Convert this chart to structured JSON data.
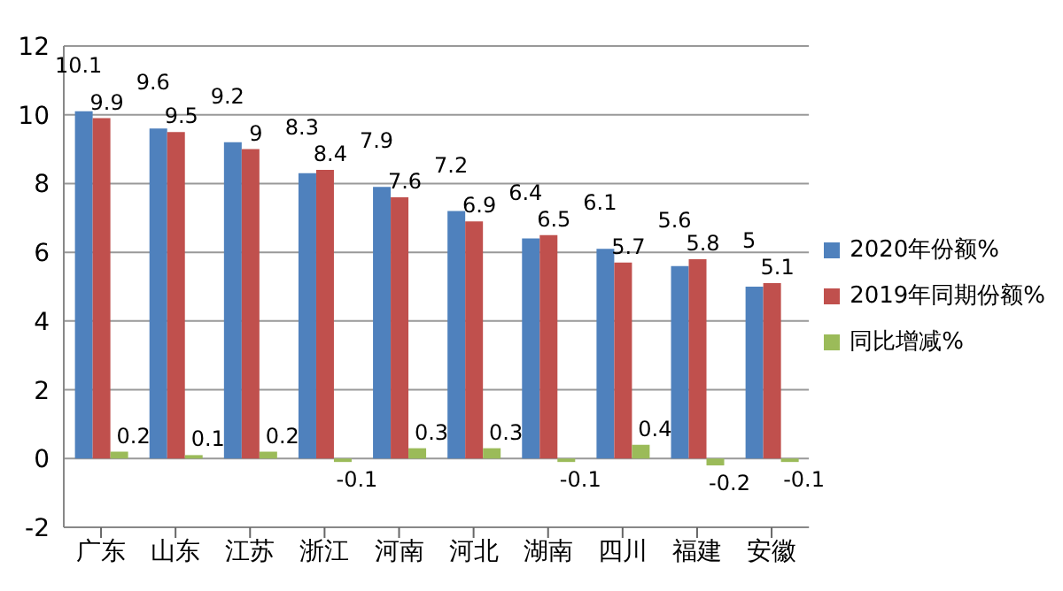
{
  "chart_data": {
    "type": "bar",
    "categories": [
      "广东",
      "山东",
      "江苏",
      "浙江",
      "河南",
      "河北",
      "湖南",
      "四川",
      "福建",
      "安徽"
    ],
    "series": [
      {
        "name": "2020年份额%",
        "color": "#4f81bd",
        "values": [
          10.1,
          9.6,
          9.2,
          8.3,
          7.9,
          7.2,
          6.4,
          6.1,
          5.6,
          5
        ]
      },
      {
        "name": "2019年同期份额%",
        "color": "#c0504d",
        "values": [
          9.9,
          9.5,
          9,
          8.4,
          7.6,
          6.9,
          6.5,
          5.7,
          5.8,
          5.1
        ]
      },
      {
        "name": "同比增减%",
        "color": "#9bbb59",
        "values": [
          0.2,
          0.1,
          0.2,
          -0.1,
          0.3,
          0.3,
          -0.1,
          0.4,
          -0.2,
          -0.1
        ]
      }
    ],
    "ylim": [
      -2,
      12
    ],
    "yticks": [
      -2,
      0,
      2,
      4,
      6,
      8,
      10,
      12
    ],
    "grid": "y",
    "legend": "right",
    "data_labels": true
  }
}
